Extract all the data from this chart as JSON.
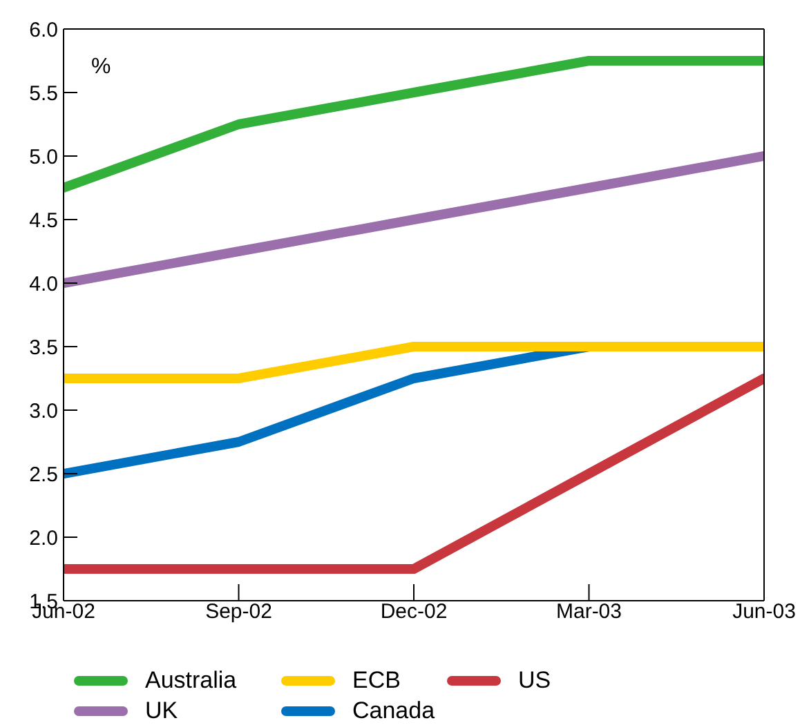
{
  "chart_data": {
    "type": "line",
    "ylabel": "%",
    "categories": [
      "Jun-02",
      "Sep-02",
      "Dec-02",
      "Mar-03",
      "Jun-03"
    ],
    "ylim": [
      1.5,
      6.0
    ],
    "yticks": [
      {
        "value": 1.5,
        "label": "1.5"
      },
      {
        "value": 2,
        "label": "2.0"
      },
      {
        "value": 2.5,
        "label": "2.5"
      },
      {
        "value": 3,
        "label": "3.0"
      },
      {
        "value": 3.5,
        "label": "3.5"
      },
      {
        "value": 4,
        "label": "4.0"
      },
      {
        "value": 4.5,
        "label": "4.5"
      },
      {
        "value": 5,
        "label": "5.0"
      },
      {
        "value": 5.5,
        "label": "5.5"
      },
      {
        "value": 6,
        "label": "6.0"
      }
    ],
    "grid": false,
    "legend": "bottom",
    "marker": "none",
    "line_style": "solid",
    "series": [
      {
        "name": "Australia",
        "color": "#33b03a",
        "values": [
          4.75,
          5.25,
          5.5,
          5.75,
          5.75
        ]
      },
      {
        "name": "ECB",
        "color": "#ffcc00",
        "values": [
          3.25,
          3.25,
          3.5,
          3.5,
          3.5
        ]
      },
      {
        "name": "US",
        "color": "#c8373d",
        "values": [
          1.75,
          1.75,
          1.75,
          2.5,
          3.25
        ]
      },
      {
        "name": "UK",
        "color": "#9a6fab",
        "values": [
          4.0,
          4.25,
          4.5,
          4.75,
          5.0
        ]
      },
      {
        "name": "Canada",
        "color": "#0070c0",
        "values": [
          2.5,
          2.75,
          3.25,
          3.5,
          null
        ]
      }
    ]
  }
}
